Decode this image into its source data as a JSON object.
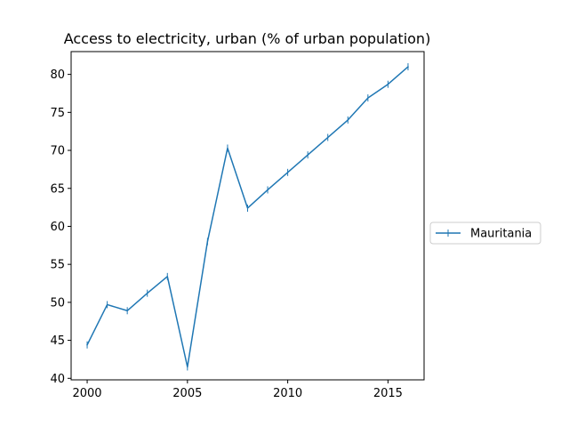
{
  "chart_data": {
    "type": "line",
    "title": "Access to electricity, urban (% of urban population)",
    "xlabel": "",
    "ylabel": "",
    "x": [
      2000,
      2001,
      2002,
      2003,
      2004,
      2005,
      2006,
      2007,
      2008,
      2009,
      2010,
      2011,
      2012,
      2013,
      2014,
      2015,
      2016
    ],
    "series": [
      {
        "name": "Mauritania",
        "color": "#1f77b4",
        "marker": "vline",
        "values": [
          44.4,
          49.7,
          48.9,
          51.2,
          53.4,
          41.5,
          58.0,
          70.3,
          62.4,
          64.8,
          67.1,
          69.4,
          71.7,
          74.0,
          76.9,
          78.7,
          81.0
        ]
      }
    ],
    "xlim": [
      1999.2,
      2016.8
    ],
    "ylim": [
      39.8,
      83.0
    ],
    "xticks": [
      2000,
      2005,
      2010,
      2015
    ],
    "yticks": [
      40,
      45,
      50,
      55,
      60,
      65,
      70,
      75,
      80
    ],
    "grid": false,
    "legend_position": "right"
  }
}
